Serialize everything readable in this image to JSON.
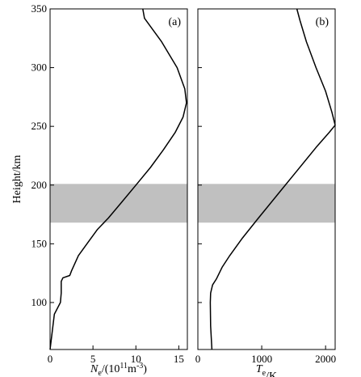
{
  "ylabel": "Height/km",
  "shade_band": [
    168,
    201
  ],
  "shade_color": "#c0c0c0",
  "chart_data": [
    {
      "type": "line",
      "panel_label": "(a)",
      "xlabel_main": "N",
      "xlabel_sub": "e",
      "xlabel_mid": "/(10",
      "xlabel_sup1": "11",
      "xlabel_mid2": "m",
      "xlabel_sup2": "-3",
      "xlabel_end": ")",
      "xlim": [
        0,
        16
      ],
      "xticks": [
        0,
        5,
        10,
        15
      ],
      "xtick_labels": [
        "0",
        "5",
        "10",
        "15"
      ],
      "ylim": [
        60,
        350
      ],
      "yticks": [
        100,
        150,
        200,
        250,
        300,
        350
      ],
      "ytick_labels": [
        "100",
        "150",
        "200",
        "250",
        "300",
        "350"
      ],
      "series": [
        {
          "x": [
            0,
            0.5,
            1.2,
            1.3,
            1.3,
            1.5,
            2.3,
            2.5,
            3.3,
            4.5,
            5.5,
            6.8,
            8.3,
            10,
            11.7,
            13.2,
            14.6,
            15.5,
            15.9,
            15.7,
            14.8,
            13.0,
            11.0,
            10.8
          ],
          "y": [
            60,
            90,
            100,
            108,
            118,
            121,
            123,
            127,
            140,
            152,
            162,
            172,
            185,
            200,
            215,
            230,
            245,
            258,
            270,
            282,
            300,
            322,
            342,
            350
          ]
        }
      ]
    },
    {
      "type": "line",
      "panel_label": "(b)",
      "xlabel_main": "T",
      "xlabel_sub": "e",
      "xlabel_end": "/K",
      "xlim": [
        0,
        2150
      ],
      "xticks": [
        0,
        1000,
        2000
      ],
      "xtick_labels": [
        "0",
        "1000",
        "2000"
      ],
      "ylim": [
        60,
        350
      ],
      "series": [
        {
          "x": [
            220,
            200,
            195,
            200,
            230,
            290,
            380,
            500,
            700,
            950,
            1250,
            1550,
            1850,
            2060,
            2150,
            2100,
            2000,
            1850,
            1700,
            1600,
            1550
          ],
          "y": [
            60,
            80,
            100,
            108,
            115,
            120,
            130,
            140,
            155,
            172,
            192,
            212,
            232,
            245,
            251,
            262,
            280,
            300,
            322,
            340,
            350
          ]
        }
      ]
    }
  ]
}
